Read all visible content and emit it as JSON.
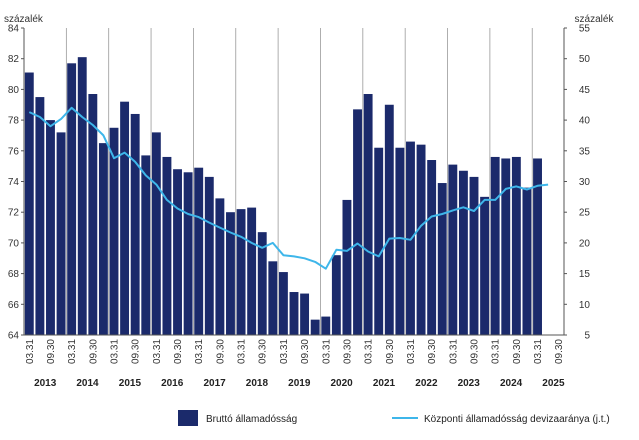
{
  "chart_data": {
    "type": "bar+line",
    "left_unit": "százalék",
    "right_unit": "százalék",
    "y_left": {
      "min": 64,
      "max": 84,
      "ticks": [
        64,
        66,
        68,
        70,
        72,
        74,
        76,
        78,
        80,
        82,
        84
      ]
    },
    "y_right": {
      "min": 5,
      "max": 55,
      "ticks": [
        5,
        10,
        15,
        20,
        25,
        30,
        35,
        40,
        45,
        50,
        55
      ]
    },
    "grid": "vertical-lines-at-year-starts",
    "legend_position": "bottom-center",
    "quarters": [
      "03.31",
      "06.30",
      "09.30",
      "12.31",
      "03.31",
      "06.30",
      "09.30",
      "12.31",
      "03.31",
      "06.30",
      "09.30",
      "12.31",
      "03.31",
      "06.30",
      "09.30",
      "12.31",
      "03.31",
      "06.30",
      "09.30",
      "12.31",
      "03.31",
      "06.30",
      "09.30",
      "12.31",
      "03.31",
      "06.30",
      "09.30",
      "12.31",
      "03.31",
      "06.30",
      "09.30",
      "12.31",
      "03.31",
      "06.30",
      "09.30",
      "12.31",
      "03.31",
      "06.30",
      "09.30",
      "12.31",
      "03.31",
      "06.30",
      "09.30",
      "12.31",
      "03.31",
      "06.30",
      "09.30",
      "12.31",
      "03.31",
      "06.30",
      "09.30"
    ],
    "tick_labels": [
      {
        "index": 0,
        "label": "03.31"
      },
      {
        "index": 2,
        "label": "09.30"
      },
      {
        "index": 4,
        "label": "03.31"
      },
      {
        "index": 6,
        "label": "09.30"
      },
      {
        "index": 8,
        "label": "03.31"
      },
      {
        "index": 10,
        "label": "09.30"
      },
      {
        "index": 12,
        "label": "03.31"
      },
      {
        "index": 14,
        "label": "09.30"
      },
      {
        "index": 16,
        "label": "03.31"
      },
      {
        "index": 18,
        "label": "09.30"
      },
      {
        "index": 20,
        "label": "03.31"
      },
      {
        "index": 22,
        "label": "09.30"
      },
      {
        "index": 24,
        "label": "03.31"
      },
      {
        "index": 26,
        "label": "09.30"
      },
      {
        "index": 28,
        "label": "03.31"
      },
      {
        "index": 30,
        "label": "09.30"
      },
      {
        "index": 32,
        "label": "03.31"
      },
      {
        "index": 34,
        "label": "09.30"
      },
      {
        "index": 36,
        "label": "03.31"
      },
      {
        "index": 38,
        "label": "09.30"
      },
      {
        "index": 40,
        "label": "03.31"
      },
      {
        "index": 42,
        "label": "09.30"
      },
      {
        "index": 44,
        "label": "03.31"
      },
      {
        "index": 46,
        "label": "09.30"
      },
      {
        "index": 48,
        "label": "03.31"
      },
      {
        "index": 50,
        "label": "09.30"
      }
    ],
    "years": [
      "2013",
      "2014",
      "2015",
      "2016",
      "2017",
      "2018",
      "2019",
      "2020",
      "2021",
      "2022",
      "2023",
      "2024",
      "2025"
    ],
    "series": [
      {
        "name": "Bruttó államadósság",
        "kind": "bar",
        "axis": "left",
        "color": "#1b2a6b",
        "values": [
          81.1,
          79.5,
          78.0,
          77.2,
          81.7,
          82.1,
          79.7,
          76.5,
          77.5,
          79.2,
          78.4,
          75.7,
          77.2,
          75.6,
          74.8,
          74.6,
          74.9,
          74.3,
          72.9,
          72.0,
          72.2,
          72.3,
          70.7,
          68.8,
          68.1,
          66.8,
          66.7,
          65.0,
          65.2,
          69.2,
          72.8,
          78.7,
          79.7,
          76.2,
          79.0,
          76.2,
          76.6,
          76.4,
          75.4,
          73.9,
          75.1,
          74.7,
          74.3,
          73.0,
          75.6,
          75.5,
          75.6,
          73.6,
          75.5,
          null,
          null
        ]
      },
      {
        "name": "Központi államadósság devizaaránya (j.t.)",
        "kind": "line",
        "axis": "right",
        "color": "#3eb6ea",
        "values": [
          41.3,
          40.5,
          39.0,
          40.2,
          42.0,
          40.5,
          39.2,
          37.5,
          33.8,
          34.7,
          33.2,
          31.0,
          29.5,
          27.0,
          25.6,
          24.7,
          24.2,
          23.3,
          22.5,
          21.7,
          21.0,
          20.0,
          19.2,
          20.0,
          18.0,
          17.8,
          17.5,
          16.9,
          15.8,
          18.9,
          18.7,
          19.9,
          18.6,
          17.8,
          20.7,
          20.8,
          20.5,
          22.8,
          24.3,
          24.7,
          25.3,
          25.8,
          25.2,
          27.0,
          27.0,
          28.8,
          29.2,
          28.7,
          29.3,
          29.5,
          null
        ]
      }
    ]
  }
}
